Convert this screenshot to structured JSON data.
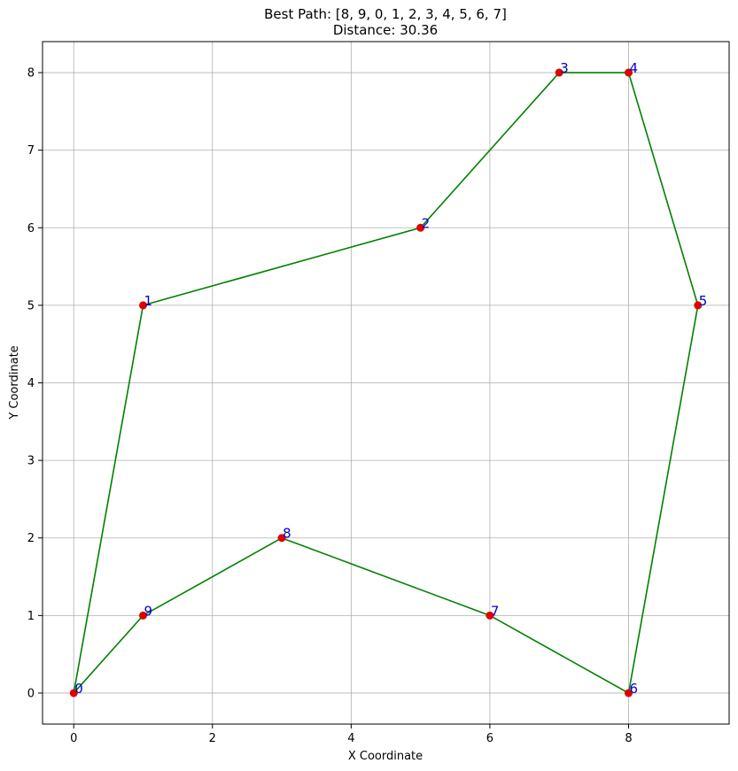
{
  "chart_data": {
    "type": "scatter",
    "title": "Best Path: [8, 9, 0, 1, 2, 3, 4, 5, 6, 7]",
    "subtitle": "Distance: 30.36",
    "xlabel": "X Coordinate",
    "ylabel": "Y Coordinate",
    "xlim": [
      -0.45,
      9.45
    ],
    "ylim": [
      -0.4,
      8.4
    ],
    "xticks": [
      0,
      2,
      4,
      6,
      8
    ],
    "yticks": [
      0,
      1,
      2,
      3,
      4,
      5,
      6,
      7,
      8
    ],
    "grid": true,
    "points": {
      "x": [
        0,
        1,
        5,
        7,
        8,
        9,
        8,
        6,
        3,
        1
      ],
      "y": [
        0,
        5,
        6,
        8,
        8,
        5,
        0,
        1,
        2,
        1
      ],
      "labels": [
        "0",
        "1",
        "2",
        "3",
        "4",
        "5",
        "6",
        "7",
        "8",
        "9"
      ],
      "color": "#e00000",
      "label_color": "#0000cc"
    },
    "path": {
      "x": [
        3,
        1,
        0,
        1,
        5,
        7,
        8,
        9,
        8,
        6,
        3
      ],
      "y": [
        2,
        1,
        0,
        5,
        6,
        8,
        8,
        5,
        0,
        1,
        2
      ],
      "color": "#008000"
    }
  }
}
